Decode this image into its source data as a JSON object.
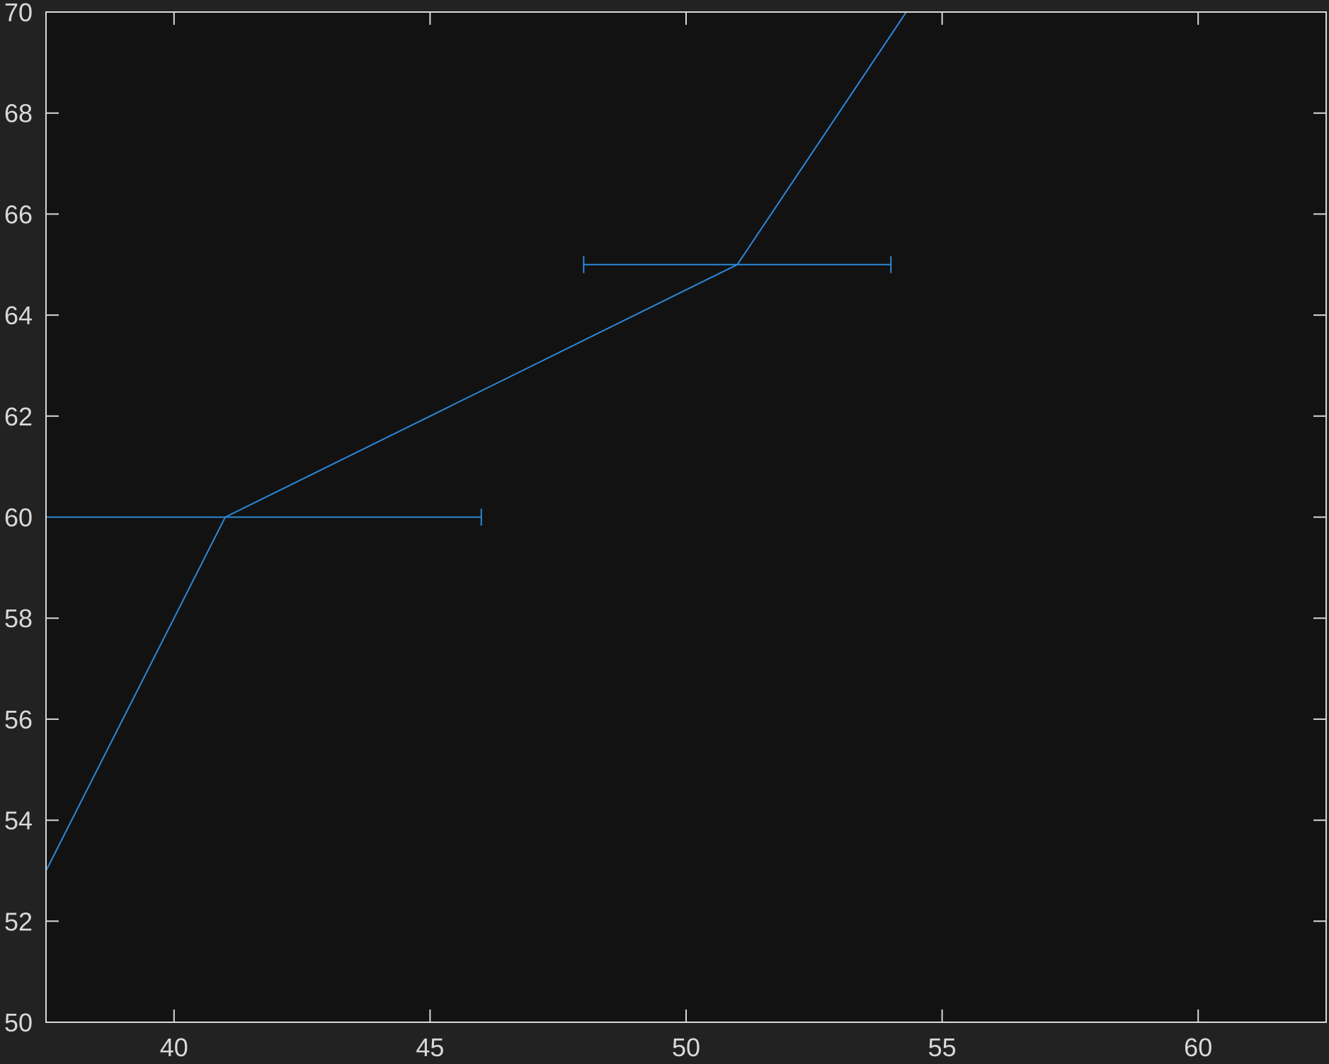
{
  "chart_data": {
    "type": "line",
    "title": "",
    "xlabel": "",
    "ylabel": "",
    "xlim": [
      37.5,
      62.5
    ],
    "ylim": [
      50,
      70
    ],
    "xticks": [
      40,
      45,
      50,
      55,
      60
    ],
    "yticks": [
      50,
      52,
      54,
      56,
      58,
      60,
      62,
      64,
      66,
      68,
      70
    ],
    "xtick_labels": [
      "40",
      "45",
      "50",
      "55",
      "60"
    ],
    "ytick_labels": [
      "50",
      "52",
      "54",
      "56",
      "58",
      "60",
      "62",
      "64",
      "66",
      "68",
      "70"
    ],
    "grid": false,
    "series": [
      {
        "color": "#2b88d8",
        "points": [
          {
            "x": 37.5,
            "y": 53
          },
          {
            "x": 41,
            "y": 60
          },
          {
            "x": 51,
            "y": 65
          },
          {
            "x": 54.3,
            "y": 70
          }
        ]
      }
    ],
    "error_bars": [
      {
        "y": 60,
        "x_low": 36,
        "x_high": 46,
        "capped_low": false,
        "capped_high": true
      },
      {
        "y": 65,
        "x_low": 48,
        "x_high": 54,
        "capped_low": true,
        "capped_high": true
      }
    ],
    "colors": {
      "background": "#222222",
      "plot_area": "#121212",
      "axis": "#d9d9d9",
      "text": "#d9d9d9"
    }
  }
}
